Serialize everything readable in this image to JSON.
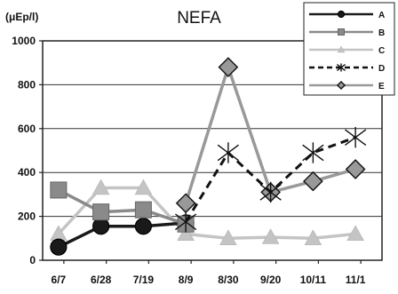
{
  "chart_data": {
    "type": "line",
    "title": "NEFA",
    "unit_label": "(μEp/l)",
    "xlabel": "",
    "ylabel": "",
    "categories": [
      "6/7",
      "6/28",
      "7/19",
      "8/9",
      "8/30",
      "9/20",
      "10/11",
      "11/1"
    ],
    "ylim": [
      0,
      1000
    ],
    "yticks": [
      "0",
      "200",
      "400",
      "600",
      "800",
      "1000"
    ],
    "grid": true,
    "legend_position": "top-right",
    "series": [
      {
        "name": "A",
        "color": "#1a1a1a",
        "line": "solid",
        "marker": "circle",
        "values": [
          60,
          155,
          155,
          170,
          null,
          null,
          null,
          null
        ]
      },
      {
        "name": "B",
        "color": "#8a8a8a",
        "line": "solid",
        "marker": "square",
        "values": [
          320,
          220,
          230,
          165,
          null,
          null,
          null,
          null
        ]
      },
      {
        "name": "C",
        "color": "#c4c4c4",
        "line": "solid",
        "marker": "triangle",
        "values": [
          120,
          330,
          330,
          120,
          100,
          105,
          100,
          120
        ]
      },
      {
        "name": "D",
        "color": "#111111",
        "line": "dashed",
        "marker": "asterisk",
        "values": [
          null,
          null,
          null,
          175,
          490,
          310,
          490,
          560
        ]
      },
      {
        "name": "E",
        "color": "#999999",
        "line": "solid",
        "marker": "diamond",
        "values": [
          null,
          null,
          null,
          260,
          880,
          310,
          360,
          415
        ]
      }
    ]
  }
}
